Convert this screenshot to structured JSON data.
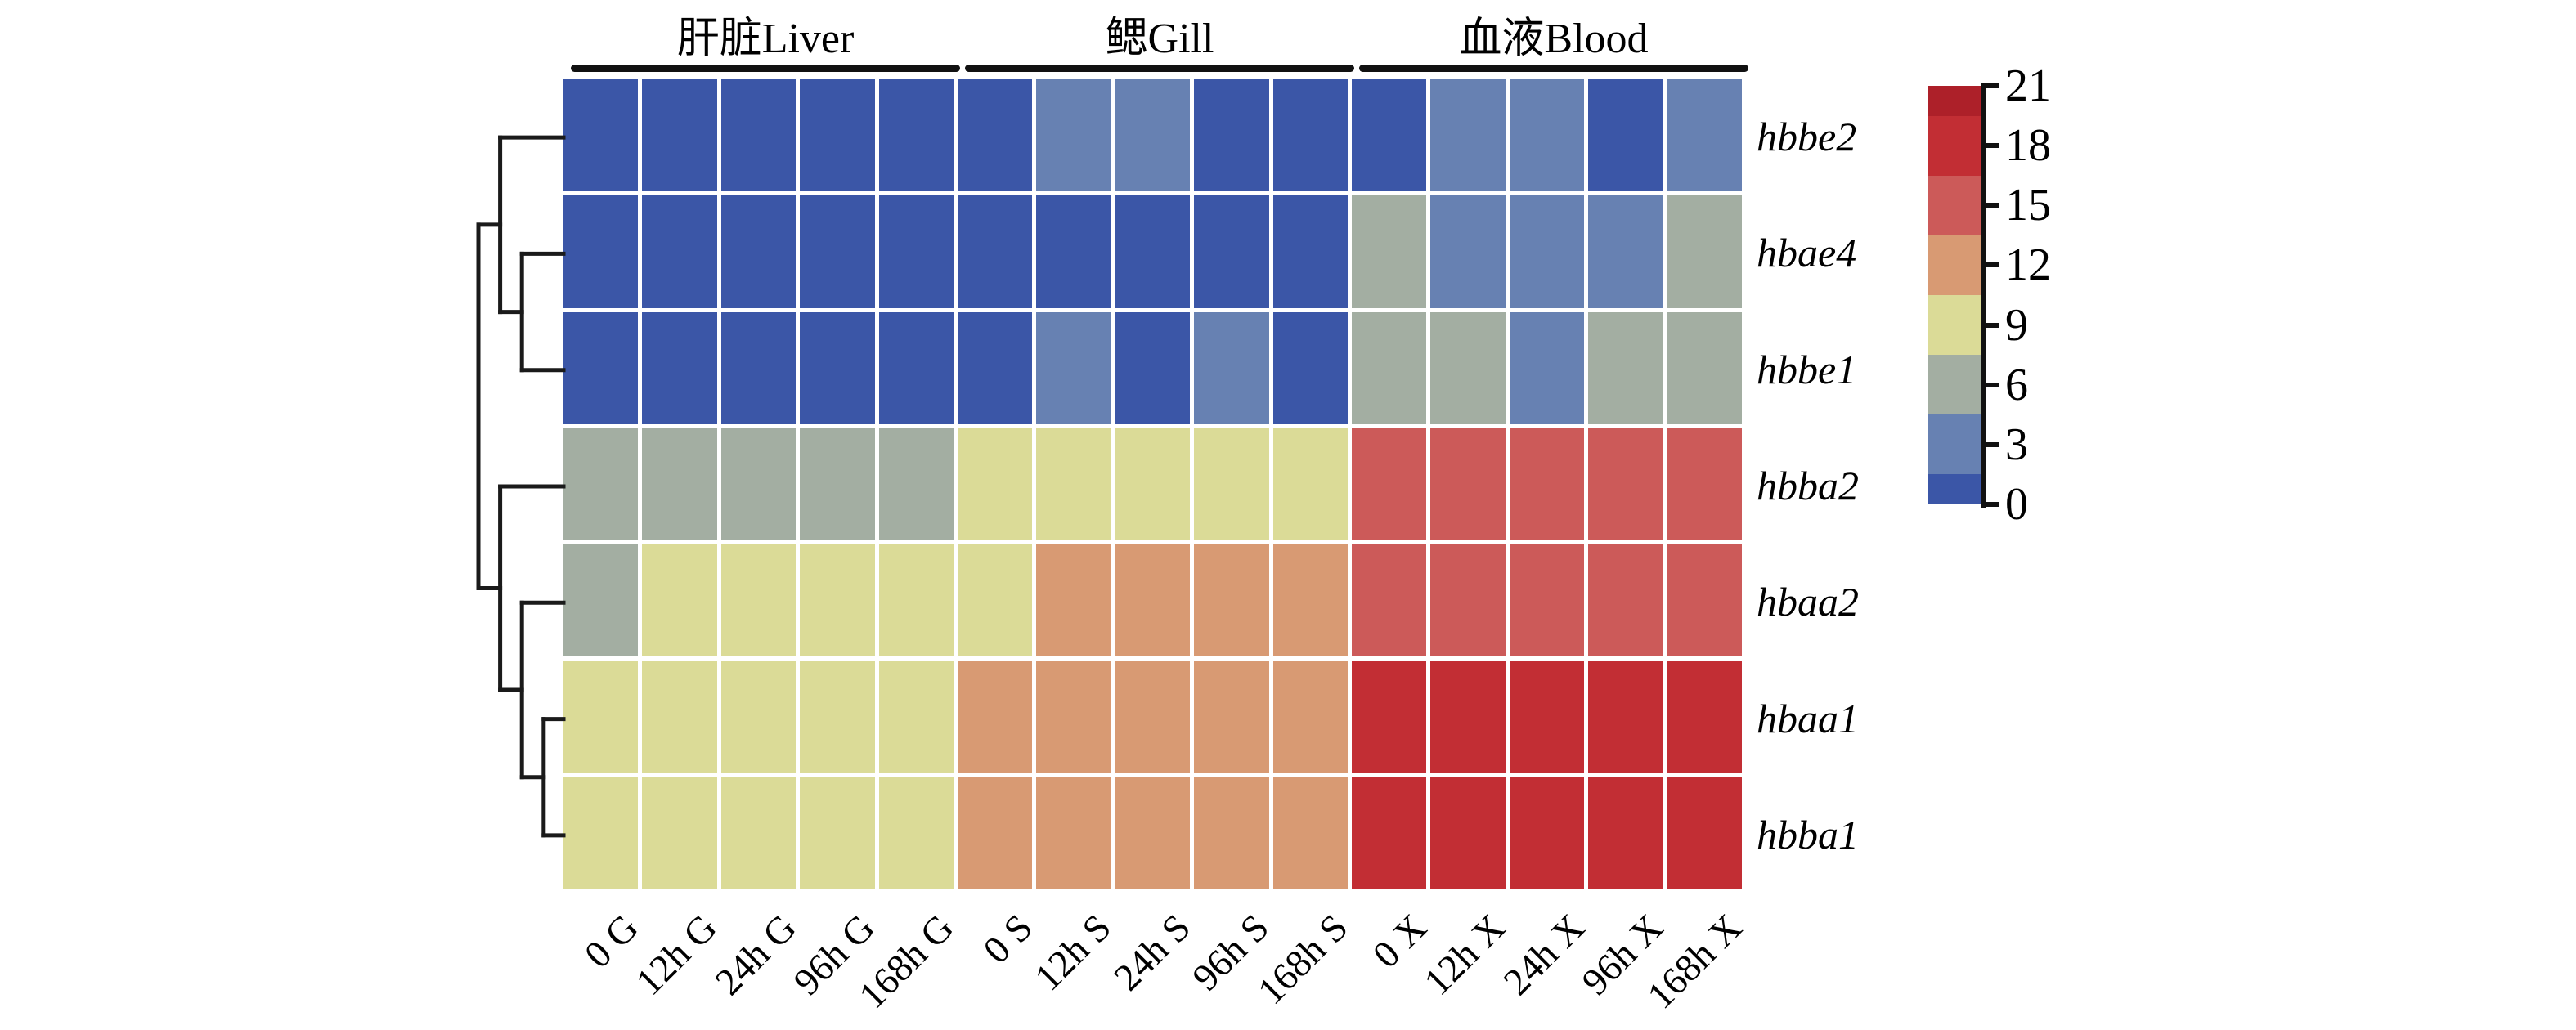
{
  "figure": {
    "background": "#ffffff",
    "text_color": "#000000",
    "cluster_bar_color": "#111111",
    "grid_gap_color": "#ffffff"
  },
  "chart_data": {
    "type": "heatmap",
    "title": "",
    "col_groups": [
      {
        "label": "肝脏Liver",
        "start": 0,
        "end": 4
      },
      {
        "label": "鳃Gill",
        "start": 5,
        "end": 9
      },
      {
        "label": "血液Blood",
        "start": 10,
        "end": 14
      }
    ],
    "columns": [
      "0 G",
      "12h G",
      "24h G",
      "96h G",
      "168h G",
      "0 S",
      "12h S",
      "24h S",
      "96h S",
      "168h S",
      "0 X",
      "12h X",
      "24h X",
      "96h X",
      "168h X"
    ],
    "rows": [
      "hbbe2",
      "hbae4",
      "hbbe1",
      "hbba2",
      "hbaa2",
      "hbaa1",
      "hbba1"
    ],
    "values": [
      [
        0,
        0,
        0,
        0,
        0,
        0,
        3,
        3,
        0,
        0,
        0,
        3,
        3,
        0,
        3
      ],
      [
        0,
        0,
        0,
        0,
        0,
        0,
        0,
        0,
        0,
        0,
        6,
        3,
        3,
        3,
        6
      ],
      [
        0,
        0,
        0,
        0,
        0,
        0,
        3,
        0,
        3,
        0,
        6,
        6,
        3,
        6,
        6
      ],
      [
        6,
        6,
        6,
        6,
        6,
        9,
        9,
        9,
        9,
        9,
        15,
        15,
        15,
        15,
        15
      ],
      [
        6,
        9,
        9,
        9,
        9,
        9,
        12,
        12,
        12,
        12,
        15,
        15,
        15,
        15,
        15
      ],
      [
        9,
        9,
        9,
        9,
        9,
        12,
        12,
        12,
        12,
        12,
        18,
        18,
        18,
        18,
        18
      ],
      [
        9,
        9,
        9,
        9,
        9,
        12,
        12,
        12,
        12,
        12,
        18,
        18,
        18,
        18,
        18
      ]
    ],
    "value_scale": {
      "min": 0,
      "max": 21,
      "ticks": [
        21,
        18,
        15,
        12,
        9,
        6,
        3,
        0
      ]
    },
    "palette": {
      "0": "#3b56a7",
      "3": "#6781b2",
      "6": "#a3aea2",
      "9": "#dbdb97",
      "12": "#d89a73",
      "15": "#cc5a59",
      "18": "#c22e34",
      "21": "#ad2029"
    },
    "row_dendrogram": [
      [
        "hbbe2",
        [
          "hbae4",
          "hbbe1"
        ]
      ],
      [
        "hbba2",
        [
          "hbaa2",
          [
            "hbaa1",
            "hbba1"
          ]
        ]
      ]
    ],
    "legend_position": "right",
    "grid": "white gaps between cells"
  }
}
